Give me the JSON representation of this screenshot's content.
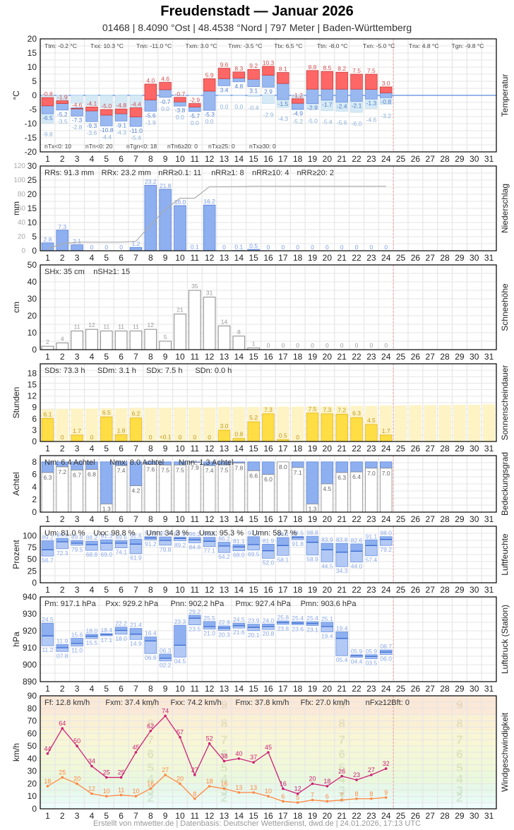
{
  "header": {
    "title": "Freudenstadt  —  Januar 2026",
    "subtitle": "01468  |  8.4090 °Ost  |  48.4538 °Nord  |  797 Meter  |  Baden-Württemberg"
  },
  "footer": "Erstellt von mtwetter.de | Datenbasis: Deutscher Wetterdienst, dwd.de | 24.01.2026, 17:13 UTC",
  "days": [
    1,
    2,
    3,
    4,
    5,
    6,
    7,
    8,
    9,
    10,
    11,
    12,
    13,
    14,
    15,
    16,
    17,
    18,
    19,
    20,
    21,
    22,
    23,
    24,
    25,
    26,
    27,
    28,
    29,
    30,
    31
  ],
  "today_marker_after_day": 24,
  "colors": {
    "tmax": "#ff6666",
    "tmean": "#99b8f0",
    "tmin_ground": "#d6eaf5",
    "precip": "#8eb0f0",
    "sun": "#ffdd44",
    "sun_possible": "#fdf3c4",
    "cloud": "#8eb0f0",
    "gust": "#cc2277",
    "wind": "#ff8844",
    "grid": "#e6e6e6",
    "today": "#f0a0a0"
  },
  "chart_data": [
    {
      "type": "bar",
      "id": "temperature",
      "title": "Temperatur",
      "ylabel": "°C",
      "ylim": [
        -20,
        20
      ],
      "yticks": [
        -20,
        -15,
        -10,
        -5,
        0,
        5,
        10,
        15,
        20
      ],
      "stats_top": [
        "Ttm: -0.2 °C",
        "Txx: 10.3 °C",
        "Tnn: -11.0 °C",
        "Txm: 3.0 °C",
        "Tnm: -3.5 °C",
        "Ttx: 6.5 °C",
        "Ttn: -8.0 °C",
        "Txn: -5.0 °C",
        "Tnx: 4.8 °C",
        "Tgn: -9.8 °C"
      ],
      "stats_bottom": [
        "nTx<0: 10",
        "nTn<0: 20",
        "nTgn<0: 18",
        "nTn6≥20: 0",
        "nTx≥25: 0",
        "nTx≥30: 0"
      ],
      "categories": [
        1,
        2,
        3,
        4,
        5,
        6,
        7,
        8,
        9,
        10,
        11,
        12,
        13,
        14,
        15,
        16,
        17,
        18,
        19,
        20,
        21,
        22,
        23,
        24
      ],
      "series": [
        {
          "name": "Tmax",
          "values": [
            -0.8,
            -1.9,
            -4.6,
            -4.1,
            -5.0,
            -4.8,
            -4.4,
            4.0,
            4.6,
            -0.7,
            -2.9,
            5.9,
            9.6,
            8.3,
            9.2,
            10.3,
            8.1,
            -1.2,
            8.8,
            8.5,
            8.2,
            7.5,
            7.5,
            3.0
          ]
        },
        {
          "name": "Tmean",
          "values": [
            -3.7,
            -2.9,
            -4.4,
            -5.5,
            -7.0,
            -6.5,
            -7.6,
            -1.6,
            2.0,
            -2.3,
            -4.1,
            1.5,
            5.9,
            6.1,
            5.7,
            7.1,
            4.2,
            -2.8,
            2.2,
            2.2,
            2.2,
            2.2,
            2.1,
            0.9
          ]
        },
        {
          "name": "Tmin",
          "values": [
            -6.5,
            -5.2,
            -7.3,
            -9.3,
            -10.8,
            -9.1,
            -11.0,
            -5.6,
            -0.7,
            -3.8,
            -5.7,
            -5.3,
            3.4,
            4.8,
            3.1,
            2.9,
            -1.5,
            -4.9,
            -2.9,
            -1.7,
            -2.4,
            -2.1,
            -1.3,
            -0.8
          ]
        },
        {
          "name": "Tground_min",
          "values": [
            -9.8,
            -3.5,
            -2.8,
            -3.6,
            -4.4,
            -4.3,
            -5.4,
            -1.9,
            0.0,
            0.0,
            0.0,
            0.0,
            0.0,
            0.0,
            -0.4,
            -2.9,
            -4.3,
            -5.2,
            -5.0,
            -5.4,
            -5.6,
            -6.0,
            -4.6,
            -3.2
          ]
        }
      ]
    },
    {
      "type": "bar",
      "id": "precipitation",
      "title": "Niederschlag",
      "ylabel": "mm",
      "ylim": [
        0,
        30
      ],
      "yticks": [
        0,
        5,
        10,
        15,
        20,
        25,
        30
      ],
      "y2ticks": [
        0,
        20,
        40,
        60,
        80,
        100,
        120
      ],
      "stats_top": [
        "RRs: 91.3 mm",
        "RRx: 23.2 mm",
        "nRR≥0.1: 11",
        "nRR≥1: 8",
        "nRR≥10: 4",
        "nRR≥20: 2"
      ],
      "categories": [
        1,
        2,
        3,
        4,
        5,
        6,
        7,
        8,
        9,
        10,
        11,
        12,
        13,
        14,
        15,
        16,
        17,
        18,
        19,
        20,
        21,
        22,
        23,
        24
      ],
      "values": [
        2.8,
        7.3,
        2.1,
        0,
        0,
        0,
        1.2,
        23.2,
        21.8,
        16.0,
        0.1,
        16.2,
        0,
        0.1,
        0.5,
        0,
        0,
        0,
        0,
        0,
        0,
        0,
        0,
        0
      ],
      "labels": [
        "2.8",
        "7.3",
        "2.1",
        "0",
        "0",
        "0",
        "1.2",
        "23.2",
        "21.8",
        "16.0",
        "0.1",
        "16.2",
        "0",
        "0.1",
        "0.5",
        "0",
        "0",
        "0",
        "0",
        "0",
        "0",
        "0",
        "0",
        "0"
      ],
      "cumulative": [
        2.8,
        10.1,
        12.2,
        12.2,
        12.2,
        12.2,
        13.4,
        36.6,
        58.4,
        74.4,
        74.5,
        90.7,
        90.7,
        90.8,
        91.3,
        91.3,
        91.3,
        91.3,
        91.3,
        91.3,
        91.3,
        91.3,
        91.3,
        91.3
      ]
    },
    {
      "type": "bar",
      "id": "snow",
      "title": "Schneehöhe",
      "ylabel": "cm",
      "ylim": [
        0,
        50
      ],
      "yticks": [
        0,
        10,
        20,
        30,
        40,
        50
      ],
      "stats_top": [
        "SHx: 35 cm",
        "nSH≥1: 15"
      ],
      "categories": [
        1,
        2,
        3,
        4,
        5,
        6,
        7,
        8,
        9,
        10,
        11,
        12,
        13,
        14,
        15,
        16,
        17,
        18,
        19,
        20,
        21,
        22,
        23,
        24
      ],
      "values": [
        2,
        4,
        11,
        12,
        11,
        11,
        11,
        12,
        5,
        21,
        35,
        31,
        14,
        8,
        1,
        0,
        0,
        0,
        0,
        0,
        0,
        0,
        0,
        0
      ]
    },
    {
      "type": "bar",
      "id": "sunshine",
      "title": "Sonnenscheindauer",
      "ylabel": "Stunden",
      "ylim": [
        0,
        20.5
      ],
      "yticks": [
        0,
        3,
        6,
        9,
        12,
        15,
        18
      ],
      "stats_top": [
        "SDs: 73.3 h",
        "SDm: 3.1 h",
        "SDx: 7.5 h",
        "SDn: 0.0 h"
      ],
      "categories": [
        1,
        2,
        3,
        4,
        5,
        6,
        7,
        8,
        9,
        10,
        11,
        12,
        13,
        14,
        15,
        16,
        17,
        18,
        19,
        20,
        21,
        22,
        23,
        24
      ],
      "values": [
        6.1,
        0,
        1.7,
        0,
        6.5,
        1.8,
        6.2,
        0,
        0.05,
        0,
        0,
        0,
        3.0,
        0.8,
        5.2,
        7.3,
        0.5,
        0,
        7.5,
        7.3,
        7.2,
        6.3,
        4.5,
        1.7
      ],
      "labels": [
        "6.1",
        "0",
        "1.7",
        "0",
        "6.5",
        "1.8",
        "6.2",
        "0",
        "<0.1",
        "0",
        "0",
        "0",
        "3.0",
        "0.8",
        "5.2",
        "7.3",
        "0.5",
        "0",
        "7.5",
        "7.3",
        "7.2",
        "6.3",
        "4.5",
        "1.7"
      ],
      "possible": [
        8.5,
        8.6,
        8.7,
        8.7,
        8.8,
        8.8,
        8.9,
        8.9,
        8.9,
        9.0,
        9.0,
        9.0,
        9.1,
        9.1,
        9.1,
        9.2,
        9.2,
        9.2,
        9.3,
        9.3,
        9.4,
        9.4,
        9.4,
        9.5,
        9.5,
        9.6,
        9.6,
        9.6,
        9.7,
        9.7,
        9.8
      ]
    },
    {
      "type": "bar",
      "id": "cloud_cover",
      "title": "Bedeckungsgrad",
      "ylabel": "Achtel",
      "ylim": [
        0,
        9
      ],
      "yticks": [
        0,
        2,
        4,
        6,
        8
      ],
      "stats_top": [
        "Nm: 6.4 Achtel",
        "Nmx: 8.0 Achtel",
        "Nmn: 1.3 Achtel"
      ],
      "categories": [
        1,
        2,
        3,
        4,
        5,
        6,
        7,
        8,
        9,
        10,
        11,
        12,
        13,
        14,
        15,
        16,
        17,
        18,
        19,
        20,
        21,
        22,
        23,
        24
      ],
      "values": [
        6.3,
        7.2,
        6.7,
        6.8,
        1.3,
        7.4,
        4.2,
        7.6,
        7.5,
        7.5,
        7.9,
        7.4,
        7.5,
        7.8,
        6.6,
        6.0,
        8.0,
        7.1,
        1.3,
        4.5,
        6.3,
        6.4,
        7.0,
        7.0
      ]
    },
    {
      "type": "bar",
      "id": "humidity",
      "title": "Luftfeuchte",
      "ylabel": "Prozent",
      "ylim": [
        0,
        120
      ],
      "yticks": [
        0,
        25,
        50,
        75,
        100
      ],
      "stats_top": [
        "Um: 81.0 %",
        "Uxx: 98.8 %",
        "Unn: 34.3 %",
        "Umx: 95.3 %",
        "Umn: 58.7 %"
      ],
      "categories": [
        1,
        2,
        3,
        4,
        5,
        6,
        7,
        8,
        9,
        10,
        11,
        12,
        13,
        14,
        15,
        16,
        17,
        18,
        19,
        20,
        21,
        22,
        23,
        24
      ],
      "series": [
        {
          "name": "Umax",
          "values": [
            89.2,
            94.5,
            89.8,
            88.2,
            91.3,
            89.6,
            92.6,
            97.9,
            97.4,
            97.0,
            96.2,
            96.5,
            86.2,
            81.1,
            97.9,
            81.9,
            96.1,
            98.5,
            98.8,
            83.9,
            83.8,
            82.6,
            91.1,
            98.0
          ]
        },
        {
          "name": "Umean",
          "values": [
            70.0,
            87.0,
            84.0,
            81.0,
            84.0,
            84.0,
            82.0,
            95.0,
            90.0,
            94.0,
            91.0,
            88.0,
            78.0,
            76.0,
            81.0,
            68.0,
            79.0,
            96.0,
            86.0,
            70.0,
            65.0,
            67.0,
            79.0,
            92.0
          ]
        },
        {
          "name": "Umin",
          "values": [
            56.7,
            72.3,
            79.5,
            68.8,
            69.0,
            74.1,
            61.9,
            91.2,
            79.8,
            89.2,
            84.8,
            77.1,
            64.2,
            68.0,
            69.5,
            52.0,
            58.1,
            91.8,
            58.9,
            44.5,
            34.3,
            44.0,
            57.4,
            79.2
          ]
        }
      ]
    },
    {
      "type": "bar",
      "id": "pressure",
      "title": "Luftdruck (Station)",
      "ylabel": "hPa",
      "ylim": [
        890,
        940
      ],
      "yticks": [
        890,
        900,
        910,
        920,
        930,
        940
      ],
      "stats_top": [
        "Pm: 917.1 hPa",
        "Pxx: 929.2 hPa",
        "Pnn: 902.2 hPa",
        "Pmx: 927.4 hPa",
        "Pmn: 903.6 hPa"
      ],
      "categories": [
        1,
        2,
        3,
        4,
        5,
        6,
        7,
        8,
        9,
        10,
        11,
        12,
        13,
        14,
        15,
        16,
        17,
        18,
        19,
        20,
        21,
        22,
        23,
        24
      ],
      "series": [
        {
          "name": "Pmax",
          "values": [
            924.5,
            911.9,
            915.6,
            918.0,
            918.4,
            922.2,
            921.4,
            916.4,
            906.3,
            923.3,
            929.2,
            925.5,
            922.9,
            924.5,
            923.9,
            924.0,
            925.8,
            925.4,
            925.4,
            925.1,
            919.4,
            905.9,
            905.9,
            908.7
          ]
        },
        {
          "name": "Pmean",
          "values": [
            917.0,
            910.0,
            912.5,
            916.8,
            917.7,
            920.2,
            918.0,
            914.0,
            903.8,
            911.5,
            927.4,
            922.4,
            921.6,
            923.0,
            922.0,
            922.5,
            924.8,
            924.5,
            924.2,
            922.5,
            915.5,
            905.2,
            904.8,
            907.4
          ]
        },
        {
          "name": "Pmin",
          "values": [
            911.2,
            907.8,
            911.0,
            915.5,
            917.1,
            918.0,
            914.9,
            906.6,
            902.2,
            904.5,
            923.5,
            921.0,
            920.3,
            921.6,
            920.1,
            920.8,
            923.8,
            923.6,
            923.1,
            919.4,
            905.4,
            904.4,
            903.5,
            906.0
          ]
        }
      ],
      "labels_max": [
        "24.5",
        "11.9",
        "15.6",
        "18.0",
        "18.4",
        "22.2",
        "21.4",
        "16.4",
        "06.3",
        "23.3",
        "29.2",
        "25.5",
        "22.9",
        "24.5",
        "23.9",
        "24.0",
        "25.8",
        "25.4",
        "25.4",
        "25.1",
        "19.4",
        "05.9",
        "05.9",
        "08.7"
      ],
      "labels_min": [
        "11.2",
        "07.8",
        "11.0",
        "15.5",
        "17.1",
        "18.0",
        "14.9",
        "06.6",
        "02.2",
        "04.5",
        "23.5",
        "21.0",
        "20.3",
        "21.6",
        "20.1",
        "20.8",
        "23.8",
        "23.6",
        "23.1",
        "19.4",
        "05.4",
        "04.4",
        "03.5",
        "06.0"
      ]
    },
    {
      "type": "line",
      "id": "wind",
      "title": "Windgeschwindigkeit",
      "ylabel": "km/h",
      "ylim": [
        0,
        90
      ],
      "yticks": [
        0,
        10,
        20,
        30,
        40,
        50,
        60,
        70,
        80,
        90
      ],
      "stats_top": [
        "Ff: 12.8 km/h",
        "Fxm: 37.4 km/h",
        "Fxx: 74.2 km/h",
        "Fmx: 37.8 km/h",
        "Ffx: 27.0 km/h",
        "nFx≥12Bft: 0"
      ],
      "categories": [
        1,
        2,
        3,
        4,
        5,
        6,
        7,
        8,
        9,
        10,
        11,
        12,
        13,
        14,
        15,
        16,
        17,
        18,
        19,
        20,
        21,
        22,
        23,
        24
      ],
      "series": [
        {
          "name": "Fx (Böen)",
          "values": [
            44,
            64,
            50,
            34,
            25,
            25,
            45,
            62,
            74,
            57,
            27,
            52,
            38,
            40,
            37,
            45,
            16,
            12,
            20,
            18,
            26,
            23,
            27,
            32
          ]
        },
        {
          "name": "Fm (Mittel)",
          "values": [
            18,
            25,
            20,
            12,
            10,
            11,
            10,
            16,
            27,
            20,
            8,
            18,
            16,
            13,
            13,
            10,
            6,
            5,
            7,
            6,
            7,
            8,
            8,
            9
          ]
        }
      ],
      "beaufort_labels": [
        "2",
        "3",
        "4",
        "5",
        "6",
        "7",
        "8",
        "9"
      ]
    }
  ]
}
